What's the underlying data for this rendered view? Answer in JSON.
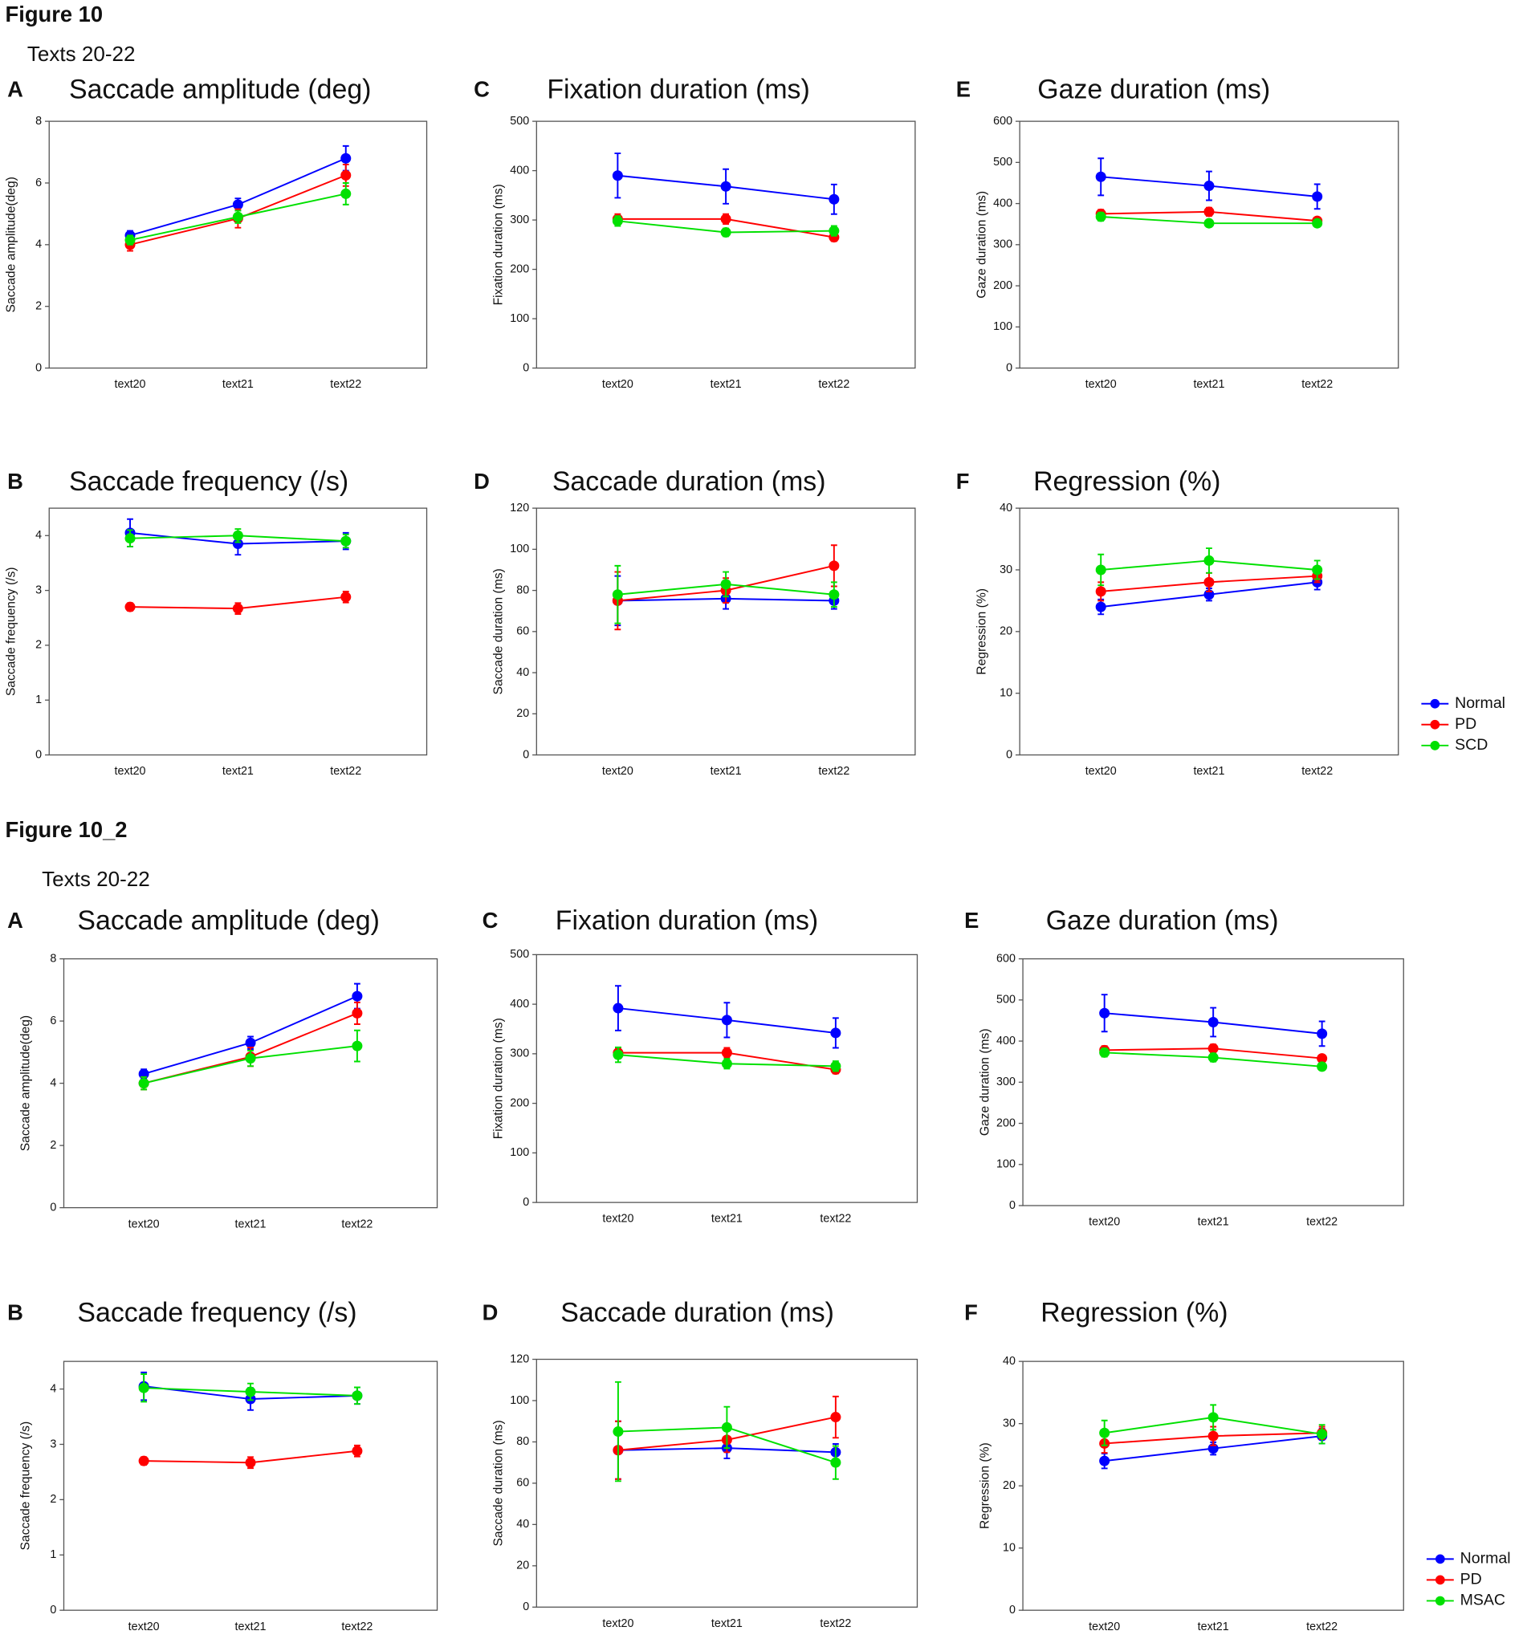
{
  "figures": [
    {
      "title": "Figure 10",
      "subtitle": "Texts 20-22"
    },
    {
      "title": "Figure 10_2",
      "subtitle": "Texts 20-22"
    }
  ],
  "chart_data": [
    {
      "type": "line",
      "panel": "A",
      "title": "Saccade amplitude (deg)",
      "ylabel": "Saccade amplitude(deg)",
      "categories": [
        "text20",
        "text21",
        "text22"
      ],
      "ylim": [
        0,
        8
      ],
      "yticks": [
        0,
        2,
        4,
        6,
        8
      ],
      "series": [
        {
          "color": "#0000ff",
          "values": [
            4.3,
            5.3,
            6.8
          ],
          "errors": [
            0.15,
            0.2,
            0.4
          ]
        },
        {
          "color": "#ff0000",
          "values": [
            4.0,
            4.85,
            6.25
          ],
          "errors": [
            0.2,
            0.3,
            0.35
          ]
        },
        {
          "color": "#00e000",
          "values": [
            4.15,
            4.9,
            5.65
          ],
          "errors": [
            0.15,
            0.2,
            0.35
          ]
        }
      ]
    },
    {
      "type": "line",
      "panel": "C",
      "title": "Fixation duration (ms)",
      "ylabel": "Fixation duration (ms)",
      "categories": [
        "text20",
        "text21",
        "text22"
      ],
      "ylim": [
        0,
        500
      ],
      "yticks": [
        0,
        100,
        200,
        300,
        400,
        500
      ],
      "series": [
        {
          "color": "#0000ff",
          "values": [
            390,
            368,
            342
          ],
          "errors": [
            45,
            35,
            30
          ]
        },
        {
          "color": "#ff0000",
          "values": [
            302,
            302,
            265
          ],
          "errors": [
            10,
            10,
            8
          ]
        },
        {
          "color": "#00e000",
          "values": [
            298,
            275,
            278
          ],
          "errors": [
            10,
            8,
            10
          ]
        }
      ]
    },
    {
      "type": "line",
      "panel": "E",
      "title": "Gaze duration (ms)",
      "ylabel": "Gaze duration (ms)",
      "categories": [
        "text20",
        "text21",
        "text22"
      ],
      "ylim": [
        0,
        600
      ],
      "yticks": [
        0,
        100,
        200,
        300,
        400,
        500,
        600
      ],
      "series": [
        {
          "color": "#0000ff",
          "values": [
            465,
            443,
            417
          ],
          "errors": [
            45,
            35,
            30
          ]
        },
        {
          "color": "#ff0000",
          "values": [
            375,
            380,
            358
          ],
          "errors": [
            10,
            10,
            8
          ]
        },
        {
          "color": "#00e000",
          "values": [
            368,
            352,
            352
          ],
          "errors": [
            10,
            8,
            8
          ]
        }
      ]
    },
    {
      "type": "line",
      "panel": "B",
      "title": "Saccade frequency (/s)",
      "ylabel": "Saccade frequency (/s)",
      "categories": [
        "text20",
        "text21",
        "text22"
      ],
      "ylim": [
        0,
        4.5
      ],
      "yticks": [
        0,
        1,
        2,
        3,
        4
      ],
      "series": [
        {
          "color": "#0000ff",
          "values": [
            4.05,
            3.85,
            3.9
          ],
          "errors": [
            0.25,
            0.2,
            0.15
          ]
        },
        {
          "color": "#ff0000",
          "values": [
            2.7,
            2.67,
            2.88
          ],
          "errors": [
            0.07,
            0.1,
            0.1
          ]
        },
        {
          "color": "#00e000",
          "values": [
            3.95,
            4.0,
            3.9
          ],
          "errors": [
            0.15,
            0.12,
            0.12
          ]
        }
      ]
    },
    {
      "type": "line",
      "panel": "D",
      "title": "Saccade duration (ms)",
      "ylabel": "Saccade duration (ms)",
      "categories": [
        "text20",
        "text21",
        "text22"
      ],
      "ylim": [
        0,
        120
      ],
      "yticks": [
        0,
        20,
        40,
        60,
        80,
        100,
        120
      ],
      "series": [
        {
          "color": "#0000ff",
          "values": [
            75,
            76,
            75
          ],
          "errors": [
            12,
            5,
            4
          ]
        },
        {
          "color": "#ff0000",
          "values": [
            75,
            80,
            92
          ],
          "errors": [
            14,
            6,
            10
          ]
        },
        {
          "color": "#00e000",
          "values": [
            78,
            83,
            78
          ],
          "errors": [
            14,
            6,
            6
          ]
        }
      ]
    },
    {
      "type": "line",
      "panel": "F",
      "title": "Regression (%)",
      "ylabel": "Regression (%)",
      "categories": [
        "text20",
        "text21",
        "text22"
      ],
      "ylim": [
        0,
        40
      ],
      "yticks": [
        0,
        10,
        20,
        30,
        40
      ],
      "legend": "right",
      "series": [
        {
          "name": "Normal",
          "color": "#0000ff",
          "values": [
            24,
            26,
            28
          ],
          "errors": [
            1.2,
            1,
            1.2
          ]
        },
        {
          "name": "PD",
          "color": "#ff0000",
          "values": [
            26.5,
            28,
            29
          ],
          "errors": [
            1.5,
            1.5,
            1
          ]
        },
        {
          "name": "SCD",
          "color": "#00e000",
          "values": [
            30,
            31.5,
            30
          ],
          "errors": [
            2.5,
            2,
            1.5
          ]
        }
      ]
    },
    {
      "type": "line",
      "panel": "A",
      "title": "Saccade amplitude (deg)",
      "ylabel": "Saccade amplitude(deg)",
      "categories": [
        "text20",
        "text21",
        "text22"
      ],
      "ylim": [
        0,
        8
      ],
      "yticks": [
        0,
        2,
        4,
        6,
        8
      ],
      "series": [
        {
          "color": "#0000ff",
          "values": [
            4.3,
            5.3,
            6.8
          ],
          "errors": [
            0.15,
            0.2,
            0.4
          ]
        },
        {
          "color": "#ff0000",
          "values": [
            4.0,
            4.85,
            6.25
          ],
          "errors": [
            0.2,
            0.3,
            0.35
          ]
        },
        {
          "color": "#00e000",
          "values": [
            4.0,
            4.8,
            5.2
          ],
          "errors": [
            0.2,
            0.25,
            0.5
          ]
        }
      ]
    },
    {
      "type": "line",
      "panel": "C",
      "title": "Fixation duration (ms)",
      "ylabel": "Fixation duration (ms)",
      "categories": [
        "text20",
        "text21",
        "text22"
      ],
      "ylim": [
        0,
        500
      ],
      "yticks": [
        0,
        100,
        200,
        300,
        400,
        500
      ],
      "series": [
        {
          "color": "#0000ff",
          "values": [
            392,
            368,
            342
          ],
          "errors": [
            45,
            35,
            30
          ]
        },
        {
          "color": "#ff0000",
          "values": [
            302,
            302,
            268
          ],
          "errors": [
            10,
            10,
            8
          ]
        },
        {
          "color": "#00e000",
          "values": [
            298,
            280,
            275
          ],
          "errors": [
            15,
            10,
            10
          ]
        }
      ]
    },
    {
      "type": "line",
      "panel": "E",
      "title": "Gaze duration (ms)",
      "ylabel": "Gaze duration (ms)",
      "categories": [
        "text20",
        "text21",
        "text22"
      ],
      "ylim": [
        0,
        600
      ],
      "yticks": [
        0,
        100,
        200,
        300,
        400,
        500,
        600
      ],
      "series": [
        {
          "color": "#0000ff",
          "values": [
            468,
            446,
            418
          ],
          "errors": [
            45,
            35,
            30
          ]
        },
        {
          "color": "#ff0000",
          "values": [
            378,
            382,
            358
          ],
          "errors": [
            10,
            10,
            8
          ]
        },
        {
          "color": "#00e000",
          "values": [
            372,
            360,
            338
          ],
          "errors": [
            10,
            10,
            8
          ]
        }
      ]
    },
    {
      "type": "line",
      "panel": "B",
      "title": "Saccade frequency (/s)",
      "ylabel": "Saccade frequency (/s)",
      "categories": [
        "text20",
        "text21",
        "text22"
      ],
      "ylim": [
        0,
        4.5
      ],
      "yticks": [
        0,
        1,
        2,
        3,
        4
      ],
      "series": [
        {
          "color": "#0000ff",
          "values": [
            4.05,
            3.82,
            3.88
          ],
          "errors": [
            0.25,
            0.2,
            0.15
          ]
        },
        {
          "color": "#ff0000",
          "values": [
            2.7,
            2.67,
            2.88
          ],
          "errors": [
            0.07,
            0.1,
            0.1
          ]
        },
        {
          "color": "#00e000",
          "values": [
            4.02,
            3.95,
            3.88
          ],
          "errors": [
            0.25,
            0.15,
            0.15
          ]
        }
      ]
    },
    {
      "type": "line",
      "panel": "D",
      "title": "Saccade duration (ms)",
      "ylabel": "Saccade duration (ms)",
      "categories": [
        "text20",
        "text21",
        "text22"
      ],
      "ylim": [
        0,
        120
      ],
      "yticks": [
        0,
        20,
        40,
        60,
        80,
        100,
        120
      ],
      "series": [
        {
          "color": "#0000ff",
          "values": [
            76,
            77,
            75
          ],
          "errors": [
            14,
            5,
            4
          ]
        },
        {
          "color": "#ff0000",
          "values": [
            76,
            81,
            92
          ],
          "errors": [
            14,
            6,
            10
          ]
        },
        {
          "color": "#00e000",
          "values": [
            85,
            87,
            70
          ],
          "errors": [
            24,
            10,
            8
          ]
        }
      ]
    },
    {
      "type": "line",
      "panel": "F",
      "title": "Regression (%)",
      "ylabel": "Regression (%)",
      "categories": [
        "text20",
        "text21",
        "text22"
      ],
      "ylim": [
        0,
        40
      ],
      "yticks": [
        0,
        10,
        20,
        30,
        40
      ],
      "legend": "right",
      "series": [
        {
          "name": "Normal",
          "color": "#0000ff",
          "values": [
            24,
            26,
            28
          ],
          "errors": [
            1.2,
            1,
            1.2
          ]
        },
        {
          "name": "PD",
          "color": "#ff0000",
          "values": [
            26.8,
            28,
            28.5
          ],
          "errors": [
            1.5,
            1.5,
            1
          ]
        },
        {
          "name": "MSAC",
          "color": "#00e000",
          "values": [
            28.5,
            31,
            28.3
          ],
          "errors": [
            2,
            2,
            1.5
          ]
        }
      ]
    }
  ]
}
